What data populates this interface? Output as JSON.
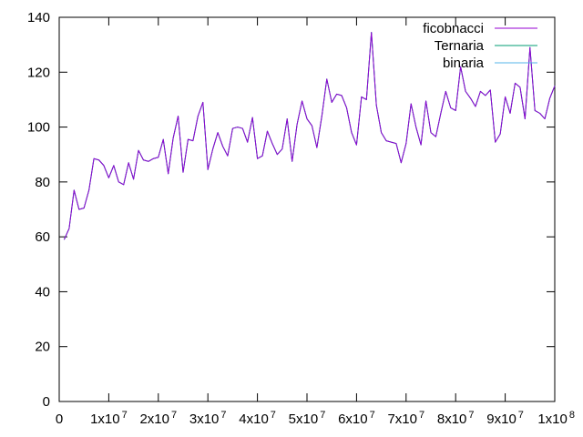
{
  "chart_data": {
    "type": "line",
    "title": "",
    "xlabel": "",
    "ylabel": "",
    "xlim": [
      0,
      100000000
    ],
    "ylim": [
      0,
      140
    ],
    "grid": false,
    "legend_position": "top-right",
    "x_ticks": [
      {
        "value": 0,
        "base": "0",
        "exp": ""
      },
      {
        "value": 10000000,
        "base": "1x10",
        "exp": "7"
      },
      {
        "value": 20000000,
        "base": "2x10",
        "exp": "7"
      },
      {
        "value": 30000000,
        "base": "3x10",
        "exp": "7"
      },
      {
        "value": 40000000,
        "base": "4x10",
        "exp": "7"
      },
      {
        "value": 50000000,
        "base": "5x10",
        "exp": "7"
      },
      {
        "value": 60000000,
        "base": "6x10",
        "exp": "7"
      },
      {
        "value": 70000000,
        "base": "7x10",
        "exp": "7"
      },
      {
        "value": 80000000,
        "base": "8x10",
        "exp": "7"
      },
      {
        "value": 90000000,
        "base": "9x10",
        "exp": "7"
      },
      {
        "value": 100000000,
        "base": "1x10",
        "exp": "8"
      }
    ],
    "y_ticks": [
      {
        "value": 0,
        "label": "0"
      },
      {
        "value": 20,
        "label": "20"
      },
      {
        "value": 40,
        "label": "40"
      },
      {
        "value": 60,
        "label": "60"
      },
      {
        "value": 80,
        "label": "80"
      },
      {
        "value": 100,
        "label": "100"
      },
      {
        "value": 120,
        "label": "120"
      },
      {
        "value": 140,
        "label": "140"
      }
    ],
    "x": [
      1000000,
      2000000,
      3000000,
      4000000,
      5000000,
      6000000,
      7000000,
      8000000,
      9000000,
      10000000,
      11000000,
      12000000,
      13000000,
      14000000,
      15000000,
      16000000,
      17000000,
      18000000,
      19000000,
      20000000,
      21000000,
      22000000,
      23000000,
      24000000,
      25000000,
      26000000,
      27000000,
      28000000,
      29000000,
      30000000,
      31000000,
      32000000,
      33000000,
      34000000,
      35000000,
      36000000,
      37000000,
      38000000,
      39000000,
      40000000,
      41000000,
      42000000,
      43000000,
      44000000,
      45000000,
      46000000,
      47000000,
      48000000,
      49000000,
      50000000,
      51000000,
      52000000,
      53000000,
      54000000,
      55000000,
      56000000,
      57000000,
      58000000,
      59000000,
      60000000,
      61000000,
      62000000,
      63000000,
      64000000,
      65000000,
      66000000,
      67000000,
      68000000,
      69000000,
      70000000,
      71000000,
      72000000,
      73000000,
      74000000,
      75000000,
      76000000,
      77000000,
      78000000,
      79000000,
      80000000,
      81000000,
      82000000,
      83000000,
      84000000,
      85000000,
      86000000,
      87000000,
      88000000,
      89000000,
      90000000,
      91000000,
      92000000,
      93000000,
      94000000,
      95000000,
      96000000,
      97000000,
      98000000,
      99000000,
      100000000
    ],
    "series": [
      {
        "name": "ficobnacci",
        "color": "#9400d3",
        "values": [
          59,
          63,
          77,
          70,
          70.5,
          77,
          88.5,
          88,
          86,
          81.5,
          86,
          80,
          79,
          87,
          81,
          91.5,
          88,
          87.5,
          88.5,
          89,
          95.5,
          83,
          96,
          104,
          83.5,
          95.5,
          95,
          104,
          109,
          84.5,
          92,
          98,
          93,
          89.5,
          99.5,
          100,
          99.5,
          94.5,
          103.5,
          88.5,
          89.5,
          98.5,
          94,
          90,
          92,
          103,
          87.5,
          101,
          109.5,
          103,
          100.5,
          92.5,
          104,
          117.5,
          109,
          112,
          111.5,
          107,
          98,
          93.5,
          111,
          110,
          134.5,
          108,
          98,
          95,
          94.5,
          94,
          87,
          94,
          108.5,
          100,
          93.5,
          109.5,
          98,
          96.5,
          105,
          113,
          107,
          106,
          122,
          113,
          110.5,
          107.5,
          113,
          111.5,
          113.5,
          94.5,
          97.5,
          111,
          105,
          116,
          114.5,
          103,
          129,
          106,
          105,
          103,
          110.5,
          115
        ]
      },
      {
        "name": "Ternaria",
        "color": "#009e73",
        "values": [
          59,
          63,
          77,
          70,
          70.5,
          77,
          88.5,
          88,
          86,
          81.5,
          86,
          80,
          79,
          87,
          81,
          91.5,
          88,
          87.5,
          88.5,
          89,
          95.5,
          83,
          96,
          104,
          83.5,
          95.5,
          95,
          104,
          109,
          84.5,
          92,
          98,
          93,
          89.5,
          99.5,
          100,
          99.5,
          94.5,
          103.5,
          88.5,
          89.5,
          98.5,
          94,
          90,
          92,
          103,
          87.5,
          101,
          109.5,
          103,
          100.5,
          92.5,
          104,
          117.5,
          109,
          112,
          111.5,
          107,
          98,
          93.5,
          111,
          110,
          134.5,
          108,
          98,
          95,
          94.5,
          94,
          87,
          94,
          108.5,
          100,
          93.5,
          109.5,
          98,
          96.5,
          105,
          113,
          107,
          106,
          122,
          113,
          110.5,
          107.5,
          113,
          111.5,
          113.5,
          94.5,
          97.5,
          111,
          105,
          116,
          114.5,
          103,
          129,
          106,
          105,
          103,
          110.5,
          115
        ]
      },
      {
        "name": "binaria",
        "color": "#56b4e9",
        "values": [
          59,
          63,
          77,
          70,
          70.5,
          77,
          88.5,
          88,
          86,
          81.5,
          86,
          80,
          79,
          87,
          81,
          91.5,
          88,
          87.5,
          88.5,
          89,
          95.5,
          83,
          96,
          104,
          83.5,
          95.5,
          95,
          104,
          109,
          84.5,
          92,
          98,
          93,
          89.5,
          99.5,
          100,
          99.5,
          94.5,
          103.5,
          88.5,
          89.5,
          98.5,
          94,
          90,
          92,
          103,
          87.5,
          101,
          109.5,
          103,
          100.5,
          92.5,
          104,
          117.5,
          109,
          112,
          111.5,
          107,
          98,
          93.5,
          111,
          110,
          134.5,
          108,
          98,
          95,
          94.5,
          94,
          87,
          94,
          108.5,
          100,
          93.5,
          109.5,
          98,
          96.5,
          105,
          113,
          107,
          106,
          122,
          113,
          110.5,
          107.5,
          113,
          111.5,
          113.5,
          94.5,
          97.5,
          111,
          105,
          116,
          114.5,
          103,
          129,
          106,
          105,
          103,
          110.5,
          115
        ]
      }
    ]
  }
}
